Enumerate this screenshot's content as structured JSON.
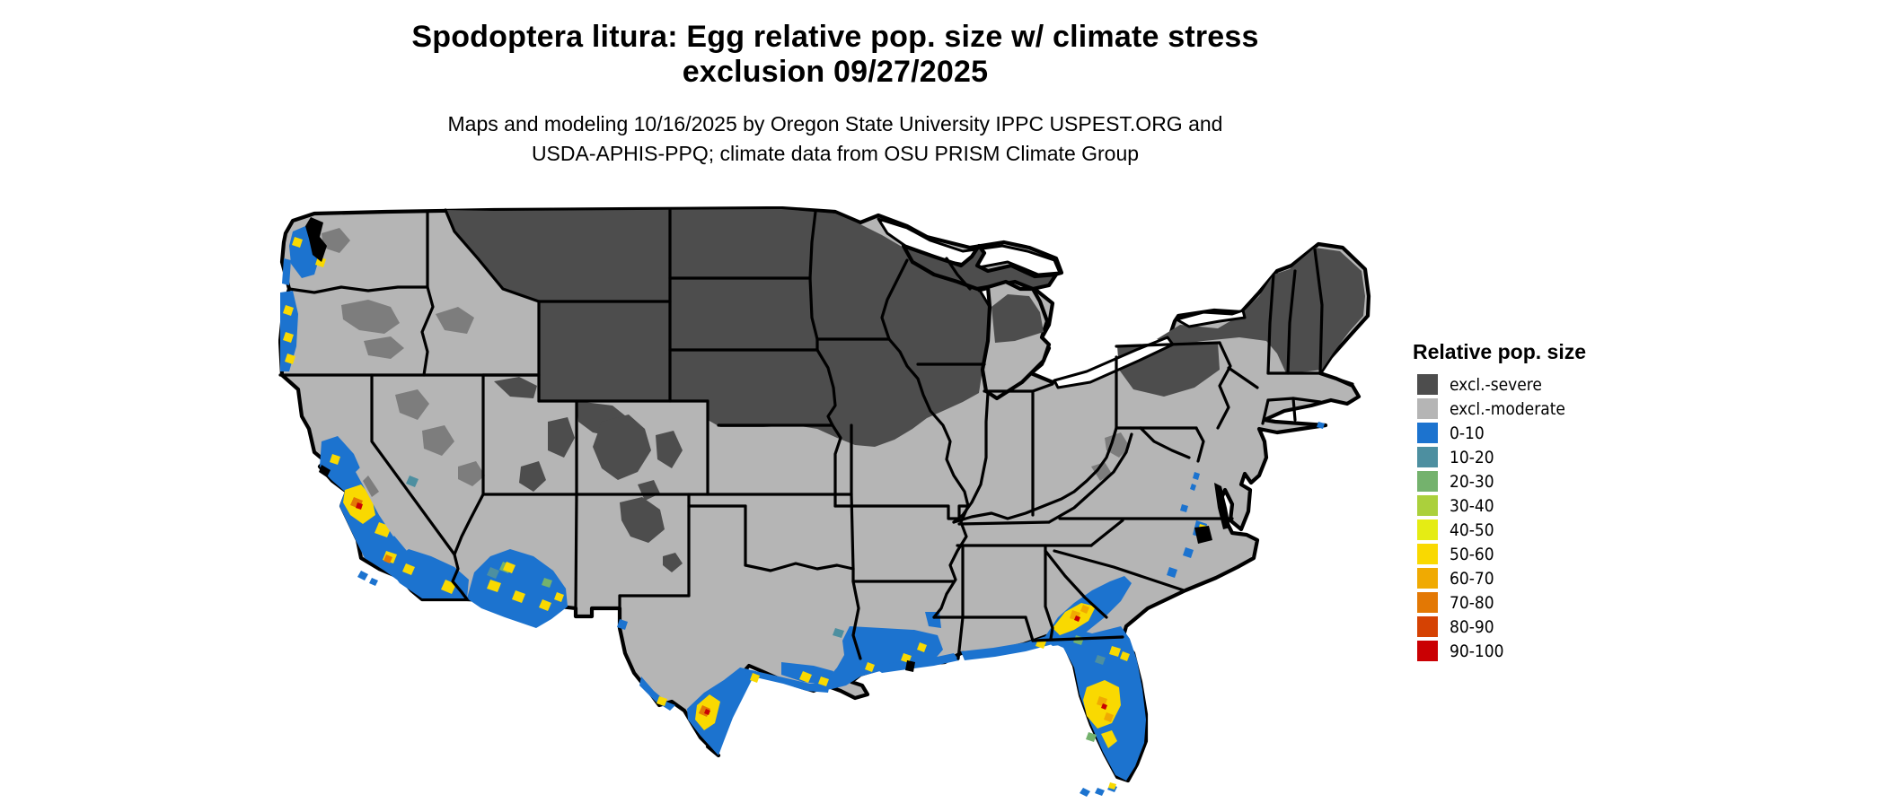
{
  "title": {
    "line1": "Spodoptera litura: Egg relative pop. size w/ climate stress",
    "line2": "exclusion 09/27/2025"
  },
  "subtitle": {
    "line1": "Maps and modeling 10/16/2025 by Oregon State University IPPC USPEST.ORG and",
    "line2": "USDA-APHIS-PPQ; climate data from OSU PRISM Climate Group"
  },
  "legend": {
    "title": "Relative pop. size",
    "items": [
      {
        "id": "severe",
        "label": "excl.-severe",
        "color": "#4d4d4d"
      },
      {
        "id": "moderate",
        "label": "excl.-moderate",
        "color": "#b5b5b5"
      },
      {
        "id": "b0",
        "label": "0-10",
        "color": "#1c73cf"
      },
      {
        "id": "b10",
        "label": "10-20",
        "color": "#4d8fa0"
      },
      {
        "id": "b20",
        "label": "20-30",
        "color": "#74b26d"
      },
      {
        "id": "b30",
        "label": "30-40",
        "color": "#abd03c"
      },
      {
        "id": "b40",
        "label": "40-50",
        "color": "#e5ec14"
      },
      {
        "id": "b50",
        "label": "50-60",
        "color": "#f9d901"
      },
      {
        "id": "b60",
        "label": "60-70",
        "color": "#f0aa02"
      },
      {
        "id": "b70",
        "label": "70-80",
        "color": "#e37804"
      },
      {
        "id": "b80",
        "label": "80-90",
        "color": "#d54203"
      },
      {
        "id": "b90",
        "label": "90-100",
        "color": "#ca0003"
      }
    ]
  },
  "map": {
    "region": "Continental United States (lower 48 states)",
    "colors": {
      "background": "#ffffff",
      "water": "#ffffff",
      "boundary": "#000000",
      "blended_gray": "#7d7d7d"
    },
    "summary": {
      "severe_exclusion_areas": "MT, WY, ND, SD, MN, WI, MI, IA, most of NE, New England, upstate NY, northern PA, Rockies in CO/UT/NM",
      "moderate_exclusion_areas": "Most of interior/eastern US",
      "population_areas": "Pacific coast valleys, central/southern California, SW Arizona, Gulf Coast, south Texas, Florida, SE Atlantic coast with 40-60 hotspots"
    }
  }
}
